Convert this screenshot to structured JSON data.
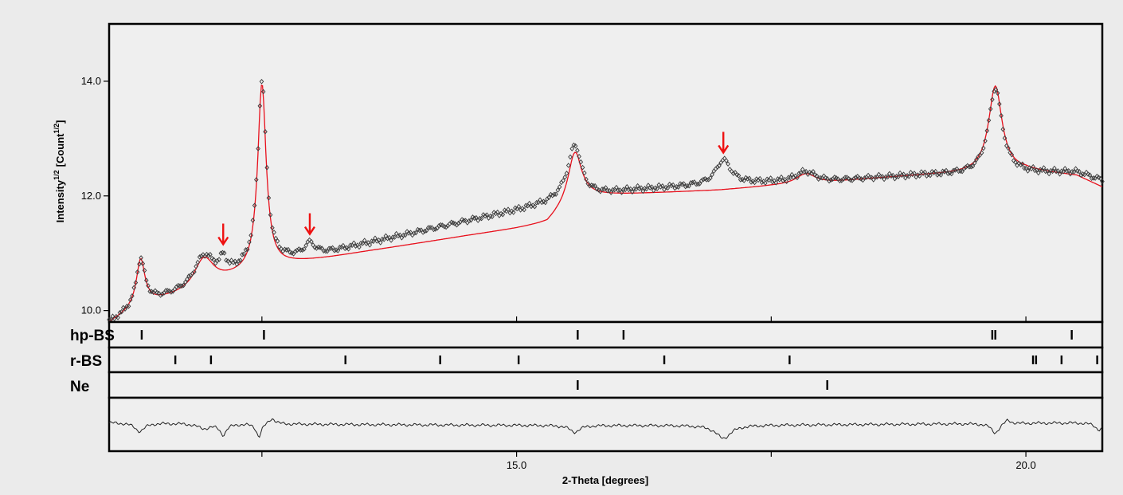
{
  "chart_data": {
    "type": "line",
    "xlabel": "2-Theta [degrees]",
    "ylabel": "Intensity",
    "ylabel_sup_1": "1/2",
    "ylabel_units_prefix": "[Count",
    "ylabel_sup_2": "1/2",
    "ylabel_units_suffix": "]",
    "xlim": [
      11.0,
      20.75
    ],
    "ylim": [
      9.8,
      15.0
    ],
    "xticks": [
      12.5,
      15.0,
      17.5,
      20.0
    ],
    "xtick_labels": [
      "",
      "15.0",
      "",
      "20.0"
    ],
    "yticks": [
      10.0,
      12.0,
      14.0
    ],
    "ytick_labels": [
      "10.0",
      "12.0",
      "14.0"
    ],
    "grid": false,
    "colors": {
      "background": "#ebebeb",
      "panel": "#efefef",
      "observed": "#3a3a3a",
      "calculated": "#e8101c",
      "difference": "#222222",
      "arrow": "#ee1111",
      "axis": "#000000"
    },
    "peaks_baseline": [
      [
        11.0,
        9.78
      ],
      [
        11.15,
        9.93
      ],
      [
        11.3,
        10.1
      ],
      [
        11.6,
        10.22
      ],
      [
        11.8,
        10.3
      ],
      [
        12.2,
        10.55
      ],
      [
        12.5,
        10.72
      ],
      [
        12.8,
        10.82
      ],
      [
        13.2,
        10.93
      ],
      [
        13.5,
        11.02
      ],
      [
        14.0,
        11.16
      ],
      [
        14.5,
        11.3
      ],
      [
        15.0,
        11.43
      ],
      [
        15.3,
        11.52
      ],
      [
        15.6,
        11.98
      ],
      [
        16.0,
        12.02
      ],
      [
        16.5,
        12.06
      ],
      [
        17.0,
        12.1
      ],
      [
        17.5,
        12.17
      ],
      [
        18.0,
        12.22
      ],
      [
        18.5,
        12.3
      ],
      [
        19.0,
        12.36
      ],
      [
        19.5,
        12.4
      ],
      [
        20.0,
        12.44
      ],
      [
        20.5,
        12.35
      ],
      [
        20.75,
        12.15
      ]
    ],
    "peaks": [
      {
        "pos": 11.31,
        "height": 0.78,
        "width": 0.05
      },
      {
        "pos": 11.93,
        "height": 0.52,
        "width": 0.12
      },
      {
        "pos": 12.5,
        "height": 3.22,
        "width": 0.05
      },
      {
        "pos": 15.57,
        "height": 0.82,
        "width": 0.08
      },
      {
        "pos": 17.84,
        "height": 0.18,
        "width": 0.12
      },
      {
        "pos": 19.7,
        "height": 1.5,
        "width": 0.08
      }
    ],
    "observed_extra_peaks": [
      {
        "pos": 12.12,
        "height": 0.25,
        "width": 0.04
      },
      {
        "pos": 12.97,
        "height": 0.2,
        "width": 0.06
      },
      {
        "pos": 17.03,
        "height": 0.42,
        "width": 0.09
      }
    ],
    "observed_offset": [
      [
        11.0,
        0.0
      ],
      [
        13.2,
        0.1
      ],
      [
        15.3,
        0.35
      ],
      [
        15.7,
        0.02
      ],
      [
        16.2,
        0.07
      ],
      [
        17.0,
        0.1
      ],
      [
        17.5,
        0.06
      ],
      [
        18.0,
        0.02
      ],
      [
        19.0,
        0.0
      ],
      [
        20.0,
        -0.05
      ],
      [
        20.75,
        0.12
      ]
    ],
    "arrows": [
      {
        "x": 12.12,
        "y": 11.1
      },
      {
        "x": 12.97,
        "y": 11.28
      },
      {
        "x": 17.03,
        "y": 12.7
      }
    ],
    "reflection_strips": [
      {
        "name": "hp-BS",
        "positions": [
          11.32,
          12.52,
          15.6,
          16.05,
          19.67,
          19.7,
          20.45
        ]
      },
      {
        "name": "r-BS",
        "positions": [
          11.65,
          12.0,
          13.32,
          14.25,
          15.02,
          16.45,
          17.68,
          20.07,
          20.1,
          20.35,
          20.7
        ]
      },
      {
        "name": "Ne",
        "positions": [
          15.6,
          18.05
        ]
      }
    ],
    "difference_dips": [
      {
        "pos": 11.3,
        "depth": 0.35,
        "width": 0.06
      },
      {
        "pos": 11.93,
        "depth": 0.2,
        "width": 0.08
      },
      {
        "pos": 12.12,
        "depth": 0.45,
        "width": 0.04
      },
      {
        "pos": 12.47,
        "depth": 0.55,
        "width": 0.03
      },
      {
        "pos": 15.57,
        "depth": 0.28,
        "width": 0.06
      },
      {
        "pos": 17.03,
        "depth": 0.55,
        "width": 0.09
      },
      {
        "pos": 19.7,
        "depth": 0.4,
        "width": 0.05
      },
      {
        "pos": 20.72,
        "depth": 0.3,
        "width": 0.05
      }
    ],
    "difference_bumps": [
      {
        "pos": 12.6,
        "height": 0.25,
        "width": 0.04
      },
      {
        "pos": 19.82,
        "height": 0.18,
        "width": 0.04
      }
    ]
  }
}
